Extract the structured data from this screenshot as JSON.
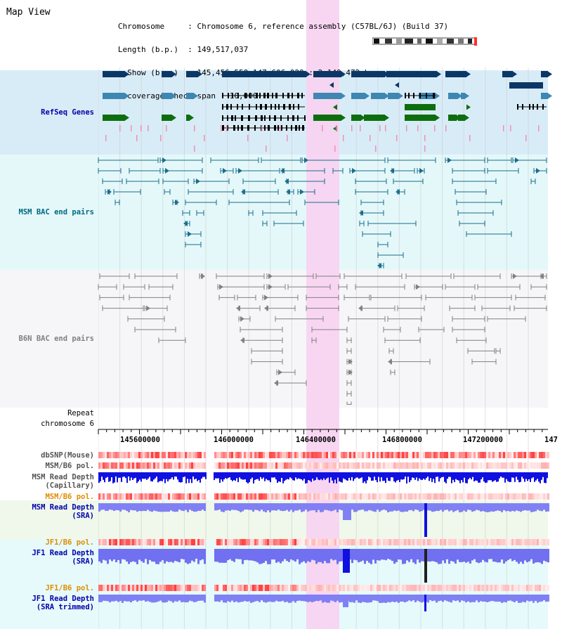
{
  "header": {
    "title": "Map View",
    "info_lines": [
      "   Chromosome     : Chromosome 6, reference assembly (C57BL/6J) (Build 37)",
      "   Length (b.p.)  : 149,517,037",
      "     Show (b.p.)  : 145,456,558-147,606,029 : 2,149,472 bp",
      "Read coverage check span : 10,000"
    ]
  },
  "tracks": {
    "refseq_genes": "RefSeq Genes",
    "msm_bac": "MSM BAC end pairs",
    "b6n_bac": "B6N BAC end pairs",
    "repeat": "Repeat",
    "chromosome": "chromosome 6"
  },
  "axis": {
    "ticks": [
      "145600000",
      "146000000",
      "146400000",
      "146800000",
      "147200000",
      "147"
    ]
  },
  "lower_tracks": {
    "dbsnp": "dbSNP(Mouse)",
    "msm_b6_pol_1": "MSM/B6 pol.",
    "msm_depth_cap_1": "MSM Read Depth",
    "msm_depth_cap_2": "(Capillary)",
    "msm_b6_pol_2": "MSM/B6 pol.",
    "msm_depth_sra_1": "MSM Read Depth",
    "msm_depth_sra_2": "(SRA)",
    "jf1_b6_pol_1": "JF1/B6 pol.",
    "jf1_depth_sra_1": "JF1 Read Depth",
    "jf1_depth_sra_2": "(SRA)",
    "jf1_b6_pol_2": "JF1/B6 pol.",
    "jf1_depth_trim_1": "JF1 Read Depth",
    "jf1_depth_trim_2": "(SRA trimmed)"
  },
  "colors": {
    "refseq_bg": "#d8ecf8",
    "msm_bg": "#e4f8fa",
    "b6n_bg": "#f6f6f8",
    "highlight": "#f7d3f1",
    "gene_dark": "#0b3766",
    "gene_mid": "#3d87b2",
    "gene_green": "#0e6e0e",
    "msm_line": "#1a6d8a",
    "b6n_line": "#808080",
    "depth": "#1010e0",
    "label_blue": "#0000aa",
    "label_teal": "#006880",
    "label_orange": "#e08c00"
  }
}
